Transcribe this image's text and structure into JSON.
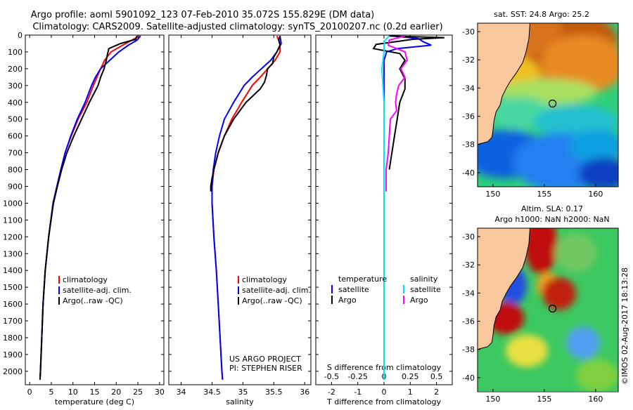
{
  "header": {
    "line1": "Argo profile: aoml 5901092_123 07-Feb-2010 35.072S 155.829E (DM data)",
    "line2": "Climatology: CARS2009. Satellite-adjusted climatology: synTS_20100207.nc (0.2d earlier)"
  },
  "colors": {
    "climatology": "#ff0000",
    "satellite": "#0000ff",
    "argo": "#000000",
    "sal_satellite": "#00e5ff",
    "sal_argo": "#ff00ff",
    "land": "#f9c89e"
  },
  "depth_ticks": [
    "0",
    "100",
    "200",
    "300",
    "400",
    "500",
    "600",
    "700",
    "800",
    "900",
    "1000",
    "1100",
    "1200",
    "1300",
    "1400",
    "1500",
    "1600",
    "1700",
    "1800",
    "1900",
    "2000"
  ],
  "chart_data": [
    {
      "type": "line",
      "name": "temperature-profile",
      "xlabel": "temperature (deg C)",
      "ylabel": "depth",
      "xlim": [
        -1,
        31
      ],
      "ylim": [
        2080,
        0
      ],
      "xticks": [
        "0",
        "5",
        "10",
        "15",
        "20",
        "25",
        "30"
      ],
      "legend": [
        "climatology",
        "satellite-adj. clim.",
        "Argo(..raw -QC)"
      ],
      "series": [
        {
          "name": "climatology",
          "depth": [
            5,
            30,
            60,
            100,
            150,
            200,
            300,
            400,
            500,
            600,
            700,
            800,
            900,
            1000,
            1200,
            1400,
            1600,
            1800,
            2000,
            2050
          ],
          "values": [
            25.3,
            23.6,
            21.5,
            18.8,
            17.3,
            16.4,
            14.7,
            13.2,
            11.2,
            9.6,
            8.2,
            7.2,
            6.3,
            5.4,
            4.4,
            3.6,
            3.1,
            2.8,
            2.5,
            2.4
          ]
        },
        {
          "name": "satellite-adj. clim.",
          "depth": [
            5,
            30,
            60,
            100,
            150,
            200,
            250,
            300,
            400,
            500,
            600,
            700,
            800,
            900,
            1000,
            1200,
            1400,
            1600,
            1800,
            2000,
            2050
          ],
          "values": [
            25.6,
            24.8,
            22.8,
            20.6,
            18.5,
            16.4,
            15.2,
            14.3,
            12.8,
            11.0,
            9.5,
            8.2,
            7.2,
            6.3,
            5.4,
            4.4,
            3.6,
            3.1,
            2.8,
            2.5,
            2.4
          ]
        },
        {
          "name": "Argo(..raw -QC)",
          "depth": [
            5,
            25,
            50,
            80,
            110,
            150,
            200,
            250,
            300,
            400,
            500,
            600,
            700,
            800,
            900,
            1000,
            1200,
            1400,
            1600,
            1800,
            2000,
            2050
          ],
          "values": [
            24.8,
            24.5,
            21.0,
            18.3,
            18.0,
            17.7,
            17.2,
            16.4,
            15.8,
            13.8,
            12.0,
            10.2,
            8.6,
            7.4,
            6.4,
            5.5,
            4.4,
            3.6,
            3.1,
            2.8,
            2.5,
            2.4
          ]
        }
      ]
    },
    {
      "type": "line",
      "name": "salinity-profile",
      "xlabel": "salinity",
      "ylabel": "depth",
      "xlim": [
        33.8,
        36.1
      ],
      "ylim": [
        2080,
        0
      ],
      "xticks": [
        "34",
        "34.5",
        "35",
        "35.5",
        "36"
      ],
      "legend": [
        "climatology",
        "satellite-adj. clim.",
        "Argo(..raw -QC)"
      ],
      "annotation": [
        "US ARGO PROJECT",
        "PI: STEPHEN RISER"
      ],
      "series": [
        {
          "name": "climatology",
          "depth": [
            5,
            50,
            100,
            150,
            200,
            250,
            300,
            400,
            500,
            600,
            700,
            800,
            900,
            1000,
            1200,
            1400,
            1600,
            1800,
            2000,
            2050
          ],
          "values": [
            35.55,
            35.6,
            35.6,
            35.52,
            35.4,
            35.28,
            35.15,
            34.98,
            34.82,
            34.7,
            34.6,
            34.53,
            34.5,
            34.5,
            34.53,
            34.57,
            34.6,
            34.63,
            34.66,
            34.67
          ]
        },
        {
          "name": "satellite-adj. clim.",
          "depth": [
            5,
            50,
            100,
            150,
            200,
            250,
            300,
            400,
            500,
            600,
            700,
            800,
            900,
            1000,
            1200,
            1400,
            1600,
            1800,
            2000,
            2050
          ],
          "values": [
            35.6,
            35.62,
            35.55,
            35.45,
            35.3,
            35.15,
            35.02,
            34.85,
            34.7,
            34.62,
            34.56,
            34.52,
            34.5,
            34.5,
            34.53,
            34.57,
            34.6,
            34.63,
            34.66,
            34.67
          ]
        },
        {
          "name": "Argo(..raw -QC)",
          "depth": [
            5,
            30,
            60,
            100,
            130,
            170,
            200,
            240,
            280,
            320,
            400,
            500,
            600,
            700,
            800,
            850,
            900,
            930
          ],
          "values": [
            35.6,
            35.58,
            35.6,
            35.55,
            35.5,
            35.48,
            35.4,
            35.38,
            35.35,
            35.28,
            35.05,
            34.85,
            34.7,
            34.6,
            34.53,
            34.5,
            34.48,
            34.48
          ]
        }
      ]
    },
    {
      "type": "line",
      "name": "difference-profile",
      "xlabel": "T difference from climatology",
      "xlabel_top": "S difference from climatology",
      "ylabel": "depth",
      "xlim": [
        -2.6,
        2.6
      ],
      "ylim": [
        2080,
        0
      ],
      "xticks": [
        "-2",
        "-1",
        "0",
        "1",
        "2"
      ],
      "xticks_top": [
        "-0.5",
        "-0.25",
        "0",
        "0.25",
        "0.5"
      ],
      "legend": [
        "temperature",
        "satellite",
        "Argo",
        "salinity",
        "satellite",
        "Argo"
      ],
      "series": [
        {
          "name": "temperature satellite",
          "depth": [
            5,
            20,
            40,
            60,
            80,
            100,
            150,
            200,
            300,
            400,
            500,
            600,
            800,
            1000,
            1500,
            2000,
            2050
          ],
          "values": [
            0.3,
            1.3,
            1.5,
            1.8,
            0.5,
            0.1,
            0,
            0,
            0,
            0,
            0,
            0,
            0,
            0,
            0,
            0,
            0
          ]
        },
        {
          "name": "temperature Argo",
          "depth": [
            5,
            15,
            25,
            40,
            55,
            80,
            110,
            150,
            200,
            260,
            320,
            400,
            500,
            600,
            700,
            800
          ],
          "values": [
            0.2,
            2.3,
            1.1,
            0.4,
            -0.3,
            -0.4,
            0.6,
            0.8,
            0.6,
            0.8,
            0.8,
            0.6,
            0.5,
            0.4,
            0.3,
            0.2
          ]
        },
        {
          "name": "salinity satellite",
          "depth": [
            5,
            30,
            60,
            100,
            200,
            300,
            400,
            600,
            800,
            1000,
            1500,
            2000,
            2050
          ],
          "values": [
            0.05,
            0.01,
            0,
            0,
            -0.02,
            -0.01,
            0,
            0,
            0,
            0,
            0,
            0,
            0
          ]
        },
        {
          "name": "salinity Argo",
          "depth": [
            5,
            30,
            60,
            100,
            150,
            200,
            250,
            300,
            350,
            400,
            450,
            500,
            600,
            700,
            800,
            900,
            930
          ],
          "values": [
            0.2,
            0.05,
            0.04,
            0.2,
            0.22,
            0.16,
            0.2,
            0.14,
            0.12,
            0.11,
            0.12,
            0.06,
            0.05,
            0.04,
            0.02,
            0.02,
            0.02
          ]
        }
      ]
    },
    {
      "type": "heatmap",
      "name": "sst-map",
      "title": "sat. SST: 24.8  Argo: 25.2",
      "xticks": [
        "150",
        "155",
        "160"
      ],
      "yticks": [
        "-30",
        "-32",
        "-34",
        "-36",
        "-38",
        "-40"
      ],
      "xlim": [
        148.5,
        162.2
      ],
      "ylim": [
        -41,
        -29.4
      ],
      "marker": {
        "lon": 155.8,
        "lat": -35.1
      }
    },
    {
      "type": "heatmap",
      "name": "sla-map",
      "title": [
        "Altim. SLA: 0.17",
        "Argo h1000: NaN  h2000: NaN"
      ],
      "xticks": [
        "150",
        "155",
        "160"
      ],
      "yticks": [
        "-30",
        "-32",
        "-34",
        "-36",
        "-38",
        "-40"
      ],
      "xlim": [
        148.5,
        162.2
      ],
      "ylim": [
        -41,
        -29.4
      ],
      "marker": {
        "lon": 155.8,
        "lat": -35.1
      }
    }
  ],
  "credit": "©IMOS 02-Aug-2017 18:13:28"
}
